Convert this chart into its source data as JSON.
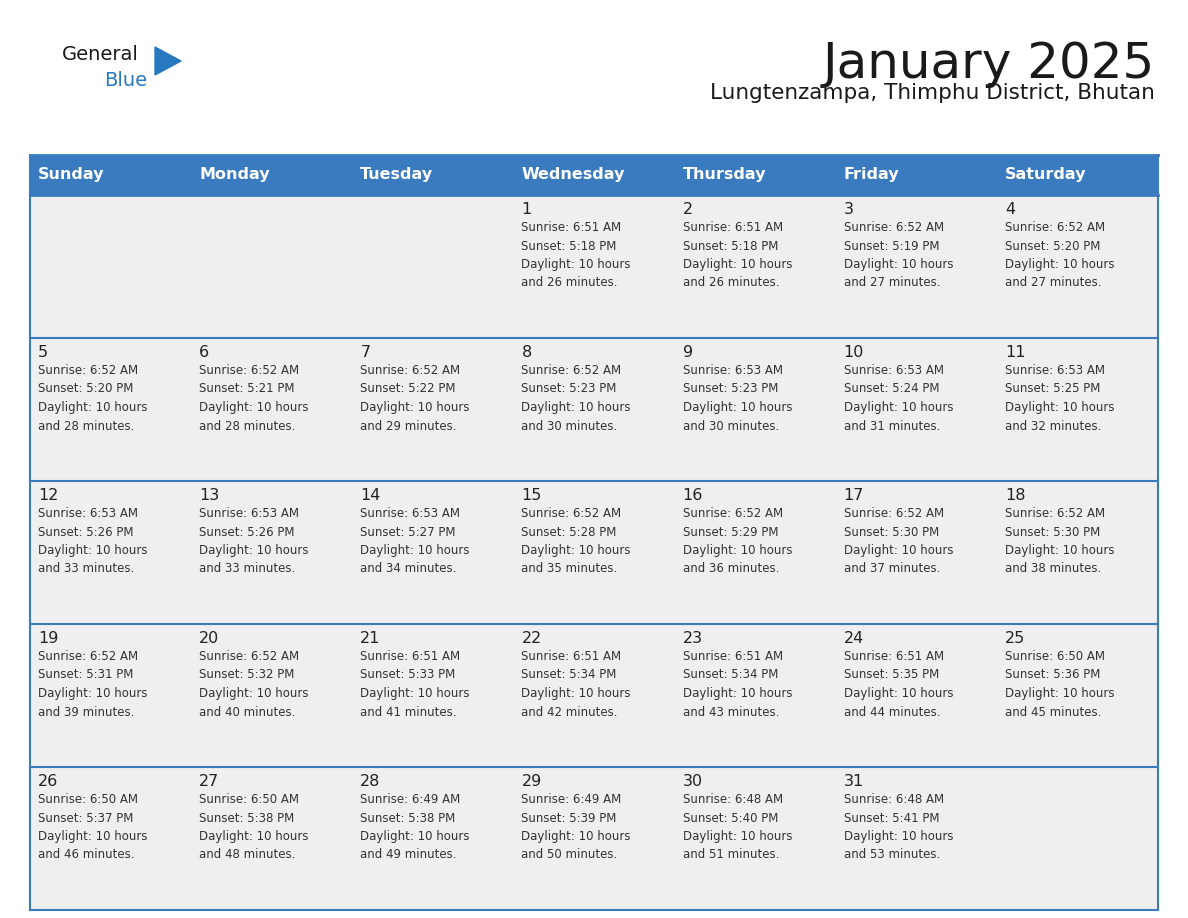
{
  "title": "January 2025",
  "subtitle": "Lungtenzampa, Thimphu District, Bhutan",
  "days_of_week": [
    "Sunday",
    "Monday",
    "Tuesday",
    "Wednesday",
    "Thursday",
    "Friday",
    "Saturday"
  ],
  "header_bg": "#3a7abf",
  "header_text": "#ffffff",
  "cell_bg": "#efefef",
  "cell_border_color": "#3a7abf",
  "day_number_color": "#222222",
  "info_text_color": "#333333",
  "title_color": "#1a1a1a",
  "subtitle_color": "#1a1a1a",
  "logo_general_color": "#1a1a1a",
  "logo_blue_color": "#2878bf",
  "logo_triangle_color": "#2878bf",
  "calendar_data": [
    [
      {
        "day": null,
        "info": ""
      },
      {
        "day": null,
        "info": ""
      },
      {
        "day": null,
        "info": ""
      },
      {
        "day": 1,
        "info": "Sunrise: 6:51 AM\nSunset: 5:18 PM\nDaylight: 10 hours\nand 26 minutes."
      },
      {
        "day": 2,
        "info": "Sunrise: 6:51 AM\nSunset: 5:18 PM\nDaylight: 10 hours\nand 26 minutes."
      },
      {
        "day": 3,
        "info": "Sunrise: 6:52 AM\nSunset: 5:19 PM\nDaylight: 10 hours\nand 27 minutes."
      },
      {
        "day": 4,
        "info": "Sunrise: 6:52 AM\nSunset: 5:20 PM\nDaylight: 10 hours\nand 27 minutes."
      }
    ],
    [
      {
        "day": 5,
        "info": "Sunrise: 6:52 AM\nSunset: 5:20 PM\nDaylight: 10 hours\nand 28 minutes."
      },
      {
        "day": 6,
        "info": "Sunrise: 6:52 AM\nSunset: 5:21 PM\nDaylight: 10 hours\nand 28 minutes."
      },
      {
        "day": 7,
        "info": "Sunrise: 6:52 AM\nSunset: 5:22 PM\nDaylight: 10 hours\nand 29 minutes."
      },
      {
        "day": 8,
        "info": "Sunrise: 6:52 AM\nSunset: 5:23 PM\nDaylight: 10 hours\nand 30 minutes."
      },
      {
        "day": 9,
        "info": "Sunrise: 6:53 AM\nSunset: 5:23 PM\nDaylight: 10 hours\nand 30 minutes."
      },
      {
        "day": 10,
        "info": "Sunrise: 6:53 AM\nSunset: 5:24 PM\nDaylight: 10 hours\nand 31 minutes."
      },
      {
        "day": 11,
        "info": "Sunrise: 6:53 AM\nSunset: 5:25 PM\nDaylight: 10 hours\nand 32 minutes."
      }
    ],
    [
      {
        "day": 12,
        "info": "Sunrise: 6:53 AM\nSunset: 5:26 PM\nDaylight: 10 hours\nand 33 minutes."
      },
      {
        "day": 13,
        "info": "Sunrise: 6:53 AM\nSunset: 5:26 PM\nDaylight: 10 hours\nand 33 minutes."
      },
      {
        "day": 14,
        "info": "Sunrise: 6:53 AM\nSunset: 5:27 PM\nDaylight: 10 hours\nand 34 minutes."
      },
      {
        "day": 15,
        "info": "Sunrise: 6:52 AM\nSunset: 5:28 PM\nDaylight: 10 hours\nand 35 minutes."
      },
      {
        "day": 16,
        "info": "Sunrise: 6:52 AM\nSunset: 5:29 PM\nDaylight: 10 hours\nand 36 minutes."
      },
      {
        "day": 17,
        "info": "Sunrise: 6:52 AM\nSunset: 5:30 PM\nDaylight: 10 hours\nand 37 minutes."
      },
      {
        "day": 18,
        "info": "Sunrise: 6:52 AM\nSunset: 5:30 PM\nDaylight: 10 hours\nand 38 minutes."
      }
    ],
    [
      {
        "day": 19,
        "info": "Sunrise: 6:52 AM\nSunset: 5:31 PM\nDaylight: 10 hours\nand 39 minutes."
      },
      {
        "day": 20,
        "info": "Sunrise: 6:52 AM\nSunset: 5:32 PM\nDaylight: 10 hours\nand 40 minutes."
      },
      {
        "day": 21,
        "info": "Sunrise: 6:51 AM\nSunset: 5:33 PM\nDaylight: 10 hours\nand 41 minutes."
      },
      {
        "day": 22,
        "info": "Sunrise: 6:51 AM\nSunset: 5:34 PM\nDaylight: 10 hours\nand 42 minutes."
      },
      {
        "day": 23,
        "info": "Sunrise: 6:51 AM\nSunset: 5:34 PM\nDaylight: 10 hours\nand 43 minutes."
      },
      {
        "day": 24,
        "info": "Sunrise: 6:51 AM\nSunset: 5:35 PM\nDaylight: 10 hours\nand 44 minutes."
      },
      {
        "day": 25,
        "info": "Sunrise: 6:50 AM\nSunset: 5:36 PM\nDaylight: 10 hours\nand 45 minutes."
      }
    ],
    [
      {
        "day": 26,
        "info": "Sunrise: 6:50 AM\nSunset: 5:37 PM\nDaylight: 10 hours\nand 46 minutes."
      },
      {
        "day": 27,
        "info": "Sunrise: 6:50 AM\nSunset: 5:38 PM\nDaylight: 10 hours\nand 48 minutes."
      },
      {
        "day": 28,
        "info": "Sunrise: 6:49 AM\nSunset: 5:38 PM\nDaylight: 10 hours\nand 49 minutes."
      },
      {
        "day": 29,
        "info": "Sunrise: 6:49 AM\nSunset: 5:39 PM\nDaylight: 10 hours\nand 50 minutes."
      },
      {
        "day": 30,
        "info": "Sunrise: 6:48 AM\nSunset: 5:40 PM\nDaylight: 10 hours\nand 51 minutes."
      },
      {
        "day": 31,
        "info": "Sunrise: 6:48 AM\nSunset: 5:41 PM\nDaylight: 10 hours\nand 53 minutes."
      },
      {
        "day": null,
        "info": ""
      }
    ]
  ]
}
